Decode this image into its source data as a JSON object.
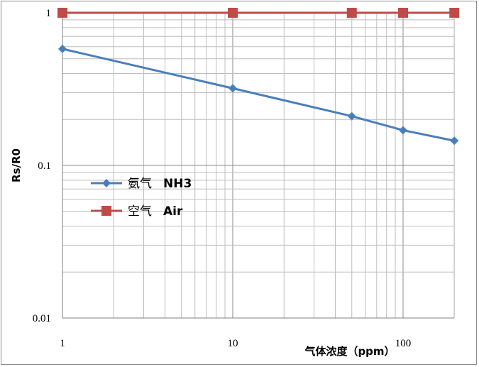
{
  "chart_data": {
    "type": "line",
    "xscale": "log",
    "yscale": "log",
    "xlim": [
      1,
      200
    ],
    "ylim": [
      0.01,
      1
    ],
    "xticks": [
      "1",
      "10",
      "100"
    ],
    "yticks": [
      "0.01",
      "0.1",
      "1"
    ],
    "xlabel": "气体浓度（ppm）",
    "ylabel": "Rs/R0",
    "grid": true,
    "legend_position": "center-left",
    "series": [
      {
        "name": "氨气 NH3",
        "name_cn": "氨气",
        "name_en": "NH3",
        "color": "#4a7ebb",
        "marker": "diamond",
        "x": [
          1,
          10,
          50,
          100,
          200
        ],
        "y": [
          0.58,
          0.32,
          0.21,
          0.17,
          0.145
        ]
      },
      {
        "name": "空气 Air",
        "name_cn": "空气",
        "name_en": "Air",
        "color": "#be4b48",
        "marker": "square",
        "x": [
          1,
          10,
          50,
          100,
          200
        ],
        "y": [
          1,
          1,
          1,
          1,
          1
        ]
      }
    ]
  }
}
